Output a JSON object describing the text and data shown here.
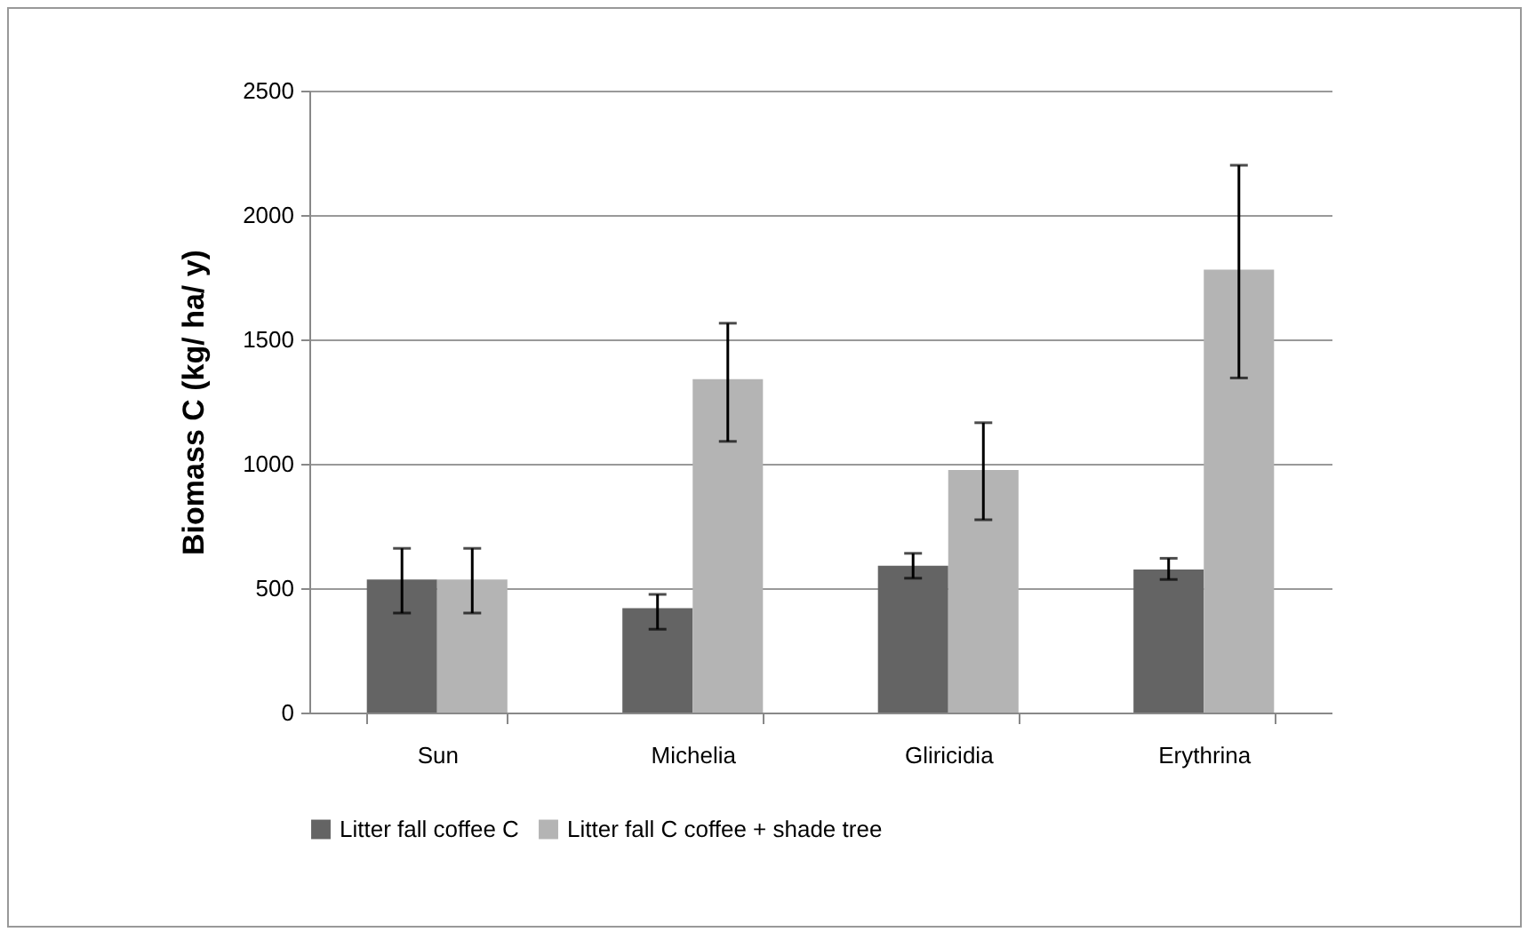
{
  "chart_data": {
    "type": "bar",
    "ylabel": "Biomass C (kg/ ha/ y)",
    "categories": [
      "Sun",
      "Michelia",
      "Gliricidia",
      "Erythrina"
    ],
    "series": [
      {
        "name": "Litter fall coffee C",
        "color": "#646464",
        "values": [
          535,
          420,
          590,
          575
        ],
        "errors": [
          [
            400,
            660
          ],
          [
            335,
            475
          ],
          [
            540,
            640
          ],
          [
            535,
            620
          ]
        ]
      },
      {
        "name": "Litter fall C coffee + shade tree",
        "color": "#b4b4b4",
        "values": [
          535,
          1340,
          975,
          1780
        ],
        "errors": [
          [
            400,
            660
          ],
          [
            1090,
            1565
          ],
          [
            775,
            1165
          ],
          [
            1345,
            2200
          ]
        ]
      }
    ],
    "ylim": [
      0,
      2500
    ],
    "yticks": [
      0,
      500,
      1000,
      1500,
      2000,
      2500
    ],
    "grid": "y",
    "legend": "bottom"
  }
}
